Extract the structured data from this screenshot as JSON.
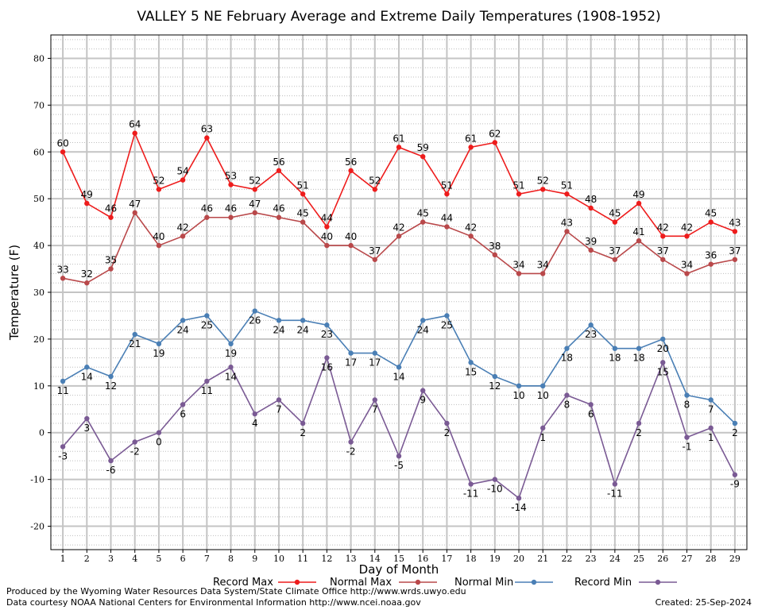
{
  "chart_data": {
    "type": "line",
    "title": "VALLEY 5 NE February Average and Extreme Daily Temperatures (1908-1952)",
    "xlabel": "Day of Month",
    "ylabel": "Temperature (F)",
    "x": [
      1,
      2,
      3,
      4,
      5,
      6,
      7,
      8,
      9,
      10,
      11,
      12,
      13,
      14,
      15,
      16,
      17,
      18,
      19,
      20,
      21,
      22,
      23,
      24,
      25,
      26,
      27,
      28,
      29
    ],
    "xlim": [
      0.5,
      29.5
    ],
    "ylim": [
      -25,
      85
    ],
    "yticks": [
      -20,
      -10,
      0,
      10,
      20,
      30,
      40,
      50,
      60,
      70,
      80
    ],
    "grid": true,
    "legend_position": "bottom",
    "series": [
      {
        "name": "Record Max",
        "color": "#ee1c1c",
        "values": [
          60,
          49,
          46,
          64,
          52,
          54,
          63,
          53,
          52,
          56,
          51,
          44,
          56,
          52,
          61,
          59,
          51,
          61,
          62,
          51,
          52,
          51,
          48,
          45,
          49,
          42,
          42,
          45,
          43
        ]
      },
      {
        "name": "Normal Max",
        "color": "#b9484a",
        "values": [
          33,
          32,
          35,
          47,
          40,
          42,
          46,
          46,
          47,
          46,
          45,
          40,
          40,
          37,
          42,
          45,
          44,
          42,
          38,
          34,
          34,
          43,
          39,
          37,
          41,
          37,
          34,
          36,
          37
        ]
      },
      {
        "name": "Normal Min",
        "color": "#4a7fb5",
        "values": [
          11,
          14,
          12,
          21,
          19,
          24,
          25,
          19,
          26,
          24,
          24,
          23,
          17,
          17,
          14,
          24,
          25,
          15,
          12,
          10,
          10,
          18,
          23,
          18,
          18,
          20,
          8,
          7,
          2
        ]
      },
      {
        "name": "Record Min",
        "color": "#7a5a94",
        "values": [
          -3,
          3,
          -6,
          -2,
          0,
          6,
          11,
          14,
          4,
          7,
          2,
          16,
          -2,
          7,
          -5,
          9,
          2,
          -11,
          -10,
          -14,
          1,
          8,
          6,
          -11,
          2,
          15,
          -1,
          1,
          -9
        ]
      }
    ]
  },
  "footer": {
    "left_line1": "Produced by the Wyoming Water Resources Data System/State Climate Office http://www.wrds.uwyo.edu",
    "left_line2": "Data courtesy NOAA National Centers for Environmental Information http://www.ncei.noaa.gov",
    "right": "Created:  25-Sep-2024"
  }
}
